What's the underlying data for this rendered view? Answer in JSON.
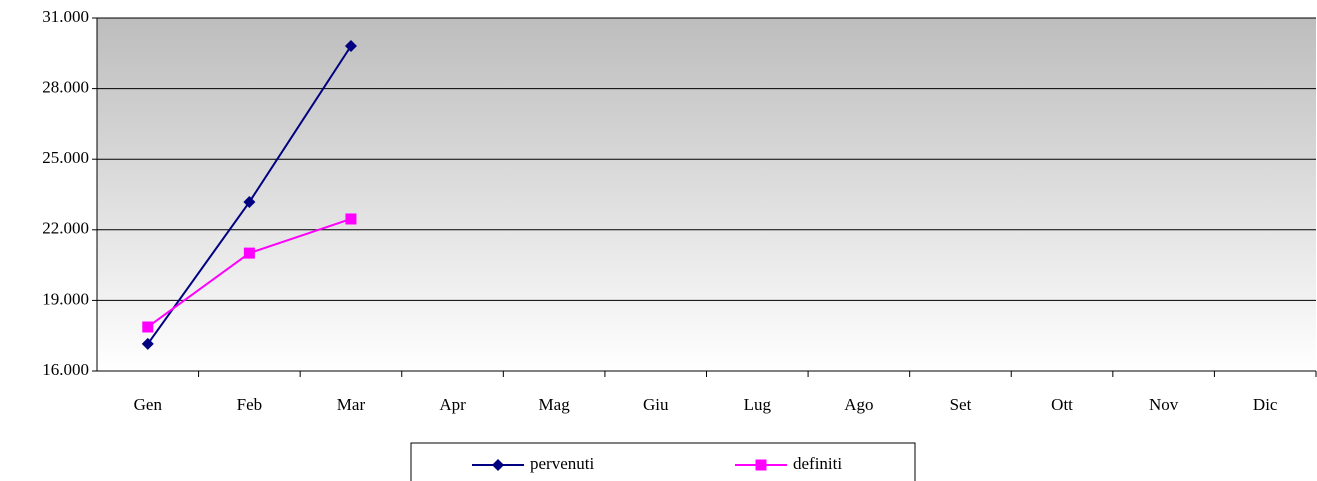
{
  "chart_data": {
    "type": "line",
    "categories": [
      "Gen",
      "Feb",
      "Mar",
      "Apr",
      "Mag",
      "Giu",
      "Lug",
      "Ago",
      "Set",
      "Ott",
      "Nov",
      "Dic"
    ],
    "series": [
      {
        "name": "pervenuti",
        "color": "#000080",
        "marker": "diamond",
        "values": [
          17150,
          23180,
          29810,
          null,
          null,
          null,
          null,
          null,
          null,
          null,
          null,
          null
        ]
      },
      {
        "name": "definiti",
        "color": "#ff00ff",
        "marker": "square",
        "values": [
          17870,
          21010,
          22460,
          null,
          null,
          null,
          null,
          null,
          null,
          null,
          null,
          null
        ]
      }
    ],
    "ylim": [
      16000,
      31000
    ],
    "yticks": [
      {
        "value": 16000,
        "label": "16.000"
      },
      {
        "value": 19000,
        "label": "19.000"
      },
      {
        "value": 22000,
        "label": "22.000"
      },
      {
        "value": 25000,
        "label": "25.000"
      },
      {
        "value": 28000,
        "label": "28.000"
      },
      {
        "value": 31000,
        "label": "31.000"
      }
    ],
    "grid": true,
    "legend": "bottom"
  }
}
